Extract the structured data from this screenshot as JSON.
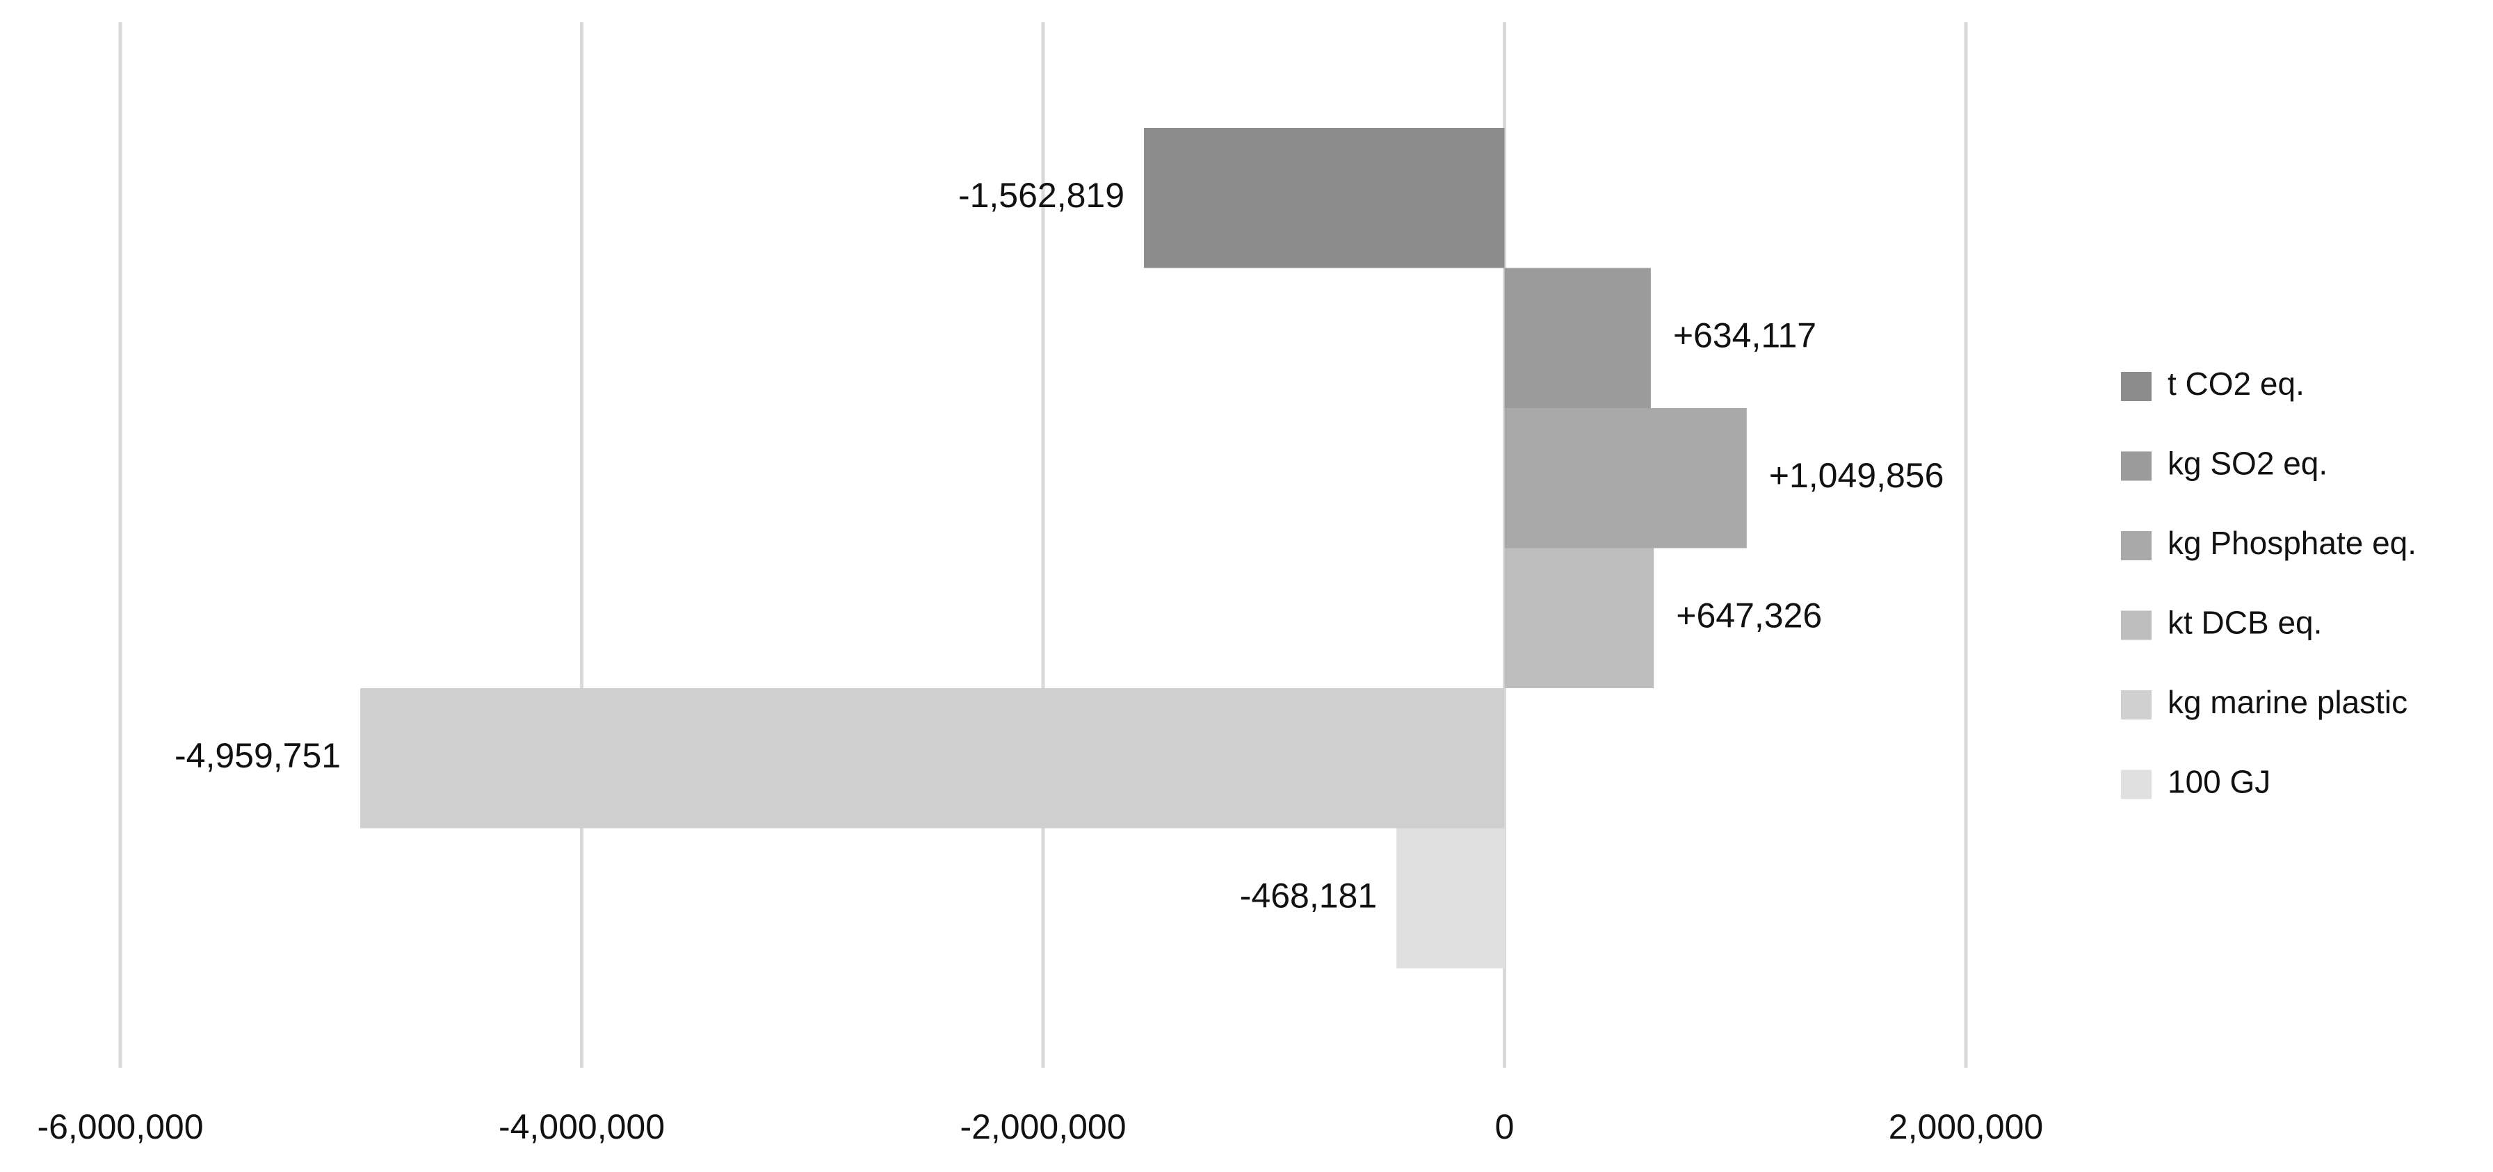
{
  "chart_data": {
    "type": "bar",
    "orientation": "horizontal",
    "title": "",
    "xlabel": "",
    "ylabel": "",
    "xlim": [
      -6000000,
      2000000
    ],
    "x_ticks": [
      -6000000,
      -4000000,
      -2000000,
      0,
      2000000
    ],
    "x_tick_labels": [
      "-6,000,000",
      "-4,000,000",
      "-2,000,000",
      "0",
      "2,000,000"
    ],
    "grid": true,
    "legend_position": "right",
    "series": [
      {
        "name": "t CO2 eq.",
        "value": -1562819,
        "label": "-1,562,819",
        "color": "#8c8c8c"
      },
      {
        "name": "kg SO2 eq.",
        "value": 634117,
        "label": "+634,117",
        "color": "#9b9b9b"
      },
      {
        "name": "kg Phosphate eq.",
        "value": 1049856,
        "label": "+1,049,856",
        "color": "#a9a9a9"
      },
      {
        "name": "kt DCB eq.",
        "value": 647326,
        "label": "+647,326",
        "color": "#bdbdbd"
      },
      {
        "name": "kg marine plastic",
        "value": -4959751,
        "label": "-4,959,751",
        "color": "#cfcfcf"
      },
      {
        "name": "100 GJ",
        "value": -468181,
        "label": "-468,181",
        "color": "#e0e0e0"
      }
    ]
  }
}
